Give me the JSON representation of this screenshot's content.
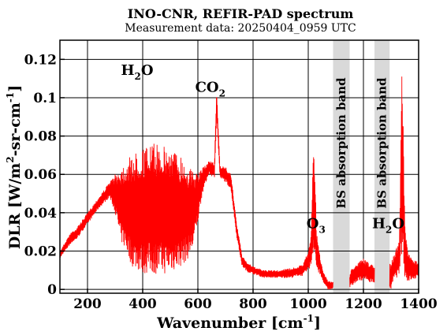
{
  "chart_data": {
    "type": "line",
    "title": "INO-CNR, REFIR-PAD spectrum",
    "subtitle": "Measurement data: 20250404_0959 UTC",
    "xlabel": "Wavenumber [cm",
    "xlabel_sup": "-1",
    "xlabel_end": "]",
    "ylabel": "DLR [W/m",
    "ylabel_sup": "2",
    "ylabel_mid": "-sr-cm",
    "ylabel_sup2": "-1",
    "ylabel_end": "]",
    "xlim": [
      100,
      1400
    ],
    "ylim": [
      -0.002,
      0.13
    ],
    "xticks": [
      200,
      400,
      600,
      800,
      1000,
      1200,
      1400
    ],
    "xtick_labels": [
      "200",
      "400",
      "600",
      "800",
      "1000",
      "1200",
      "1400"
    ],
    "yticks": [
      0,
      0.02,
      0.04,
      0.06,
      0.08,
      0.1,
      0.12
    ],
    "ytick_labels": [
      "0",
      "0.02",
      "0.04",
      "0.06",
      "0.08",
      "0.1",
      "0.12"
    ],
    "grid": true,
    "line_color": "#ff0000",
    "band_color": "#d9d9d9",
    "bands": [
      {
        "x0": 1090,
        "x1": 1150,
        "label": "BS absorption band"
      },
      {
        "x0": 1240,
        "x1": 1295,
        "label": "BS absorption band"
      }
    ],
    "annotations": [
      {
        "id": "h2o-left",
        "base": "H",
        "sub": "2",
        "tail": "O",
        "x": 380,
        "y": 0.112
      },
      {
        "id": "co2",
        "base": "CO",
        "sub": "2",
        "tail": "",
        "x": 645,
        "y": 0.103
      },
      {
        "id": "o3",
        "base": "O",
        "sub": "3",
        "tail": "",
        "x": 1028,
        "y": 0.032
      },
      {
        "id": "h2o-right",
        "base": "H",
        "sub": "2",
        "tail": "O",
        "x": 1290,
        "y": 0.032
      }
    ],
    "series": [
      {
        "values_note": "",
        "x": [
          100,
          120,
          140,
          160,
          180,
          200,
          220,
          240,
          260,
          280,
          300,
          320,
          340,
          360,
          380,
          400,
          420,
          440,
          460,
          480,
          500,
          520,
          540,
          560,
          580,
          600,
          620,
          640,
          660,
          668,
          680,
          700,
          720,
          740,
          760,
          780,
          800,
          820,
          840,
          860,
          880,
          900,
          920,
          940,
          960,
          980,
          1000,
          1010,
          1020,
          1030,
          1040,
          1050,
          1060,
          1070,
          1080,
          1090,
          1150,
          1160,
          1180,
          1200,
          1220,
          1240,
          1300,
          1310,
          1320,
          1330,
          1340,
          1350,
          1360,
          1380,
          1400
        ],
        "y": [
          0.02,
          0.025,
          0.03,
          0.032,
          0.036,
          0.04,
          0.044,
          0.048,
          0.052,
          0.056,
          0.06,
          0.064,
          0.067,
          0.07,
          0.072,
          0.074,
          0.075,
          0.076,
          0.076,
          0.075,
          0.074,
          0.072,
          0.07,
          0.066,
          0.062,
          0.06,
          0.064,
          0.067,
          0.066,
          0.105,
          0.065,
          0.064,
          0.06,
          0.035,
          0.018,
          0.014,
          0.012,
          0.011,
          0.01,
          0.01,
          0.01,
          0.01,
          0.011,
          0.011,
          0.012,
          0.013,
          0.02,
          0.028,
          0.085,
          0.03,
          0.02,
          0.012,
          0.008,
          0.005,
          0.004,
          0.004,
          0.008,
          0.012,
          0.014,
          0.016,
          0.014,
          0.012,
          0.014,
          0.018,
          0.022,
          0.026,
          0.12,
          0.035,
          0.02,
          0.015,
          0.015
        ],
        "lower": [
          0.016,
          0.02,
          0.024,
          0.026,
          0.03,
          0.034,
          0.038,
          0.042,
          0.045,
          0.048,
          0.04,
          0.025,
          0.02,
          0.012,
          0.01,
          0.008,
          0.008,
          0.008,
          0.008,
          0.008,
          0.009,
          0.01,
          0.012,
          0.015,
          0.02,
          0.035,
          0.052,
          0.06,
          0.058,
          0.09,
          0.058,
          0.056,
          0.052,
          0.028,
          0.012,
          0.009,
          0.008,
          0.007,
          0.006,
          0.006,
          0.006,
          0.006,
          0.006,
          0.006,
          0.007,
          0.007,
          0.01,
          0.012,
          0.02,
          0.01,
          0.008,
          0.005,
          0.002,
          0.0,
          0.0,
          0.0,
          0.0,
          0.002,
          0.004,
          0.005,
          0.004,
          0.003,
          0.0,
          0.005,
          0.006,
          0.008,
          0.02,
          0.006,
          0.004,
          0.005,
          0.006
        ]
      }
    ]
  }
}
